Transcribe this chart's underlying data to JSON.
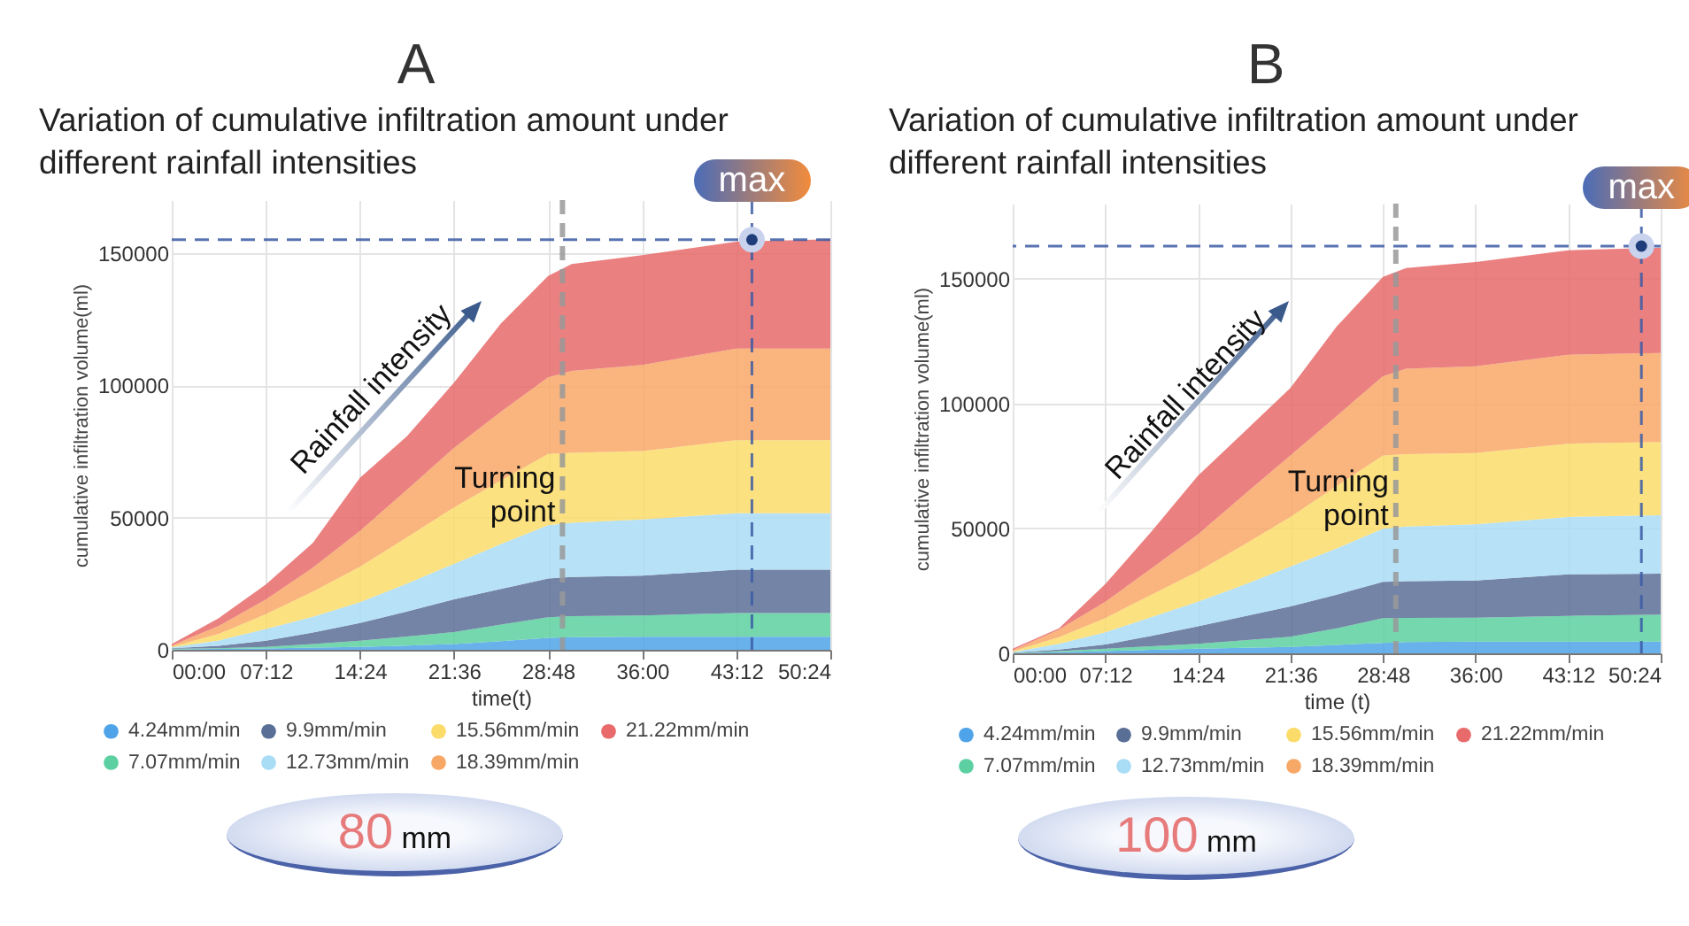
{
  "chart_data": [
    {
      "type": "area",
      "stacked": true,
      "title": "A",
      "subtitle": "Variation of cumulative infiltration amount under different rainfall intensities",
      "xlabel": "time(t)",
      "ylabel": "cumulative infiltration volume(ml)",
      "x": [
        0,
        3.6,
        7.2,
        10.8,
        14.4,
        18,
        21.6,
        25.2,
        28.8,
        30.6,
        36,
        43.2,
        50.4
      ],
      "xlim": [
        0,
        50.4
      ],
      "xticks": [
        {
          "value": 0,
          "label": "00:00"
        },
        {
          "value": 7.2,
          "label": "07:12"
        },
        {
          "value": 14.4,
          "label": "14:24"
        },
        {
          "value": 21.6,
          "label": "21:36"
        },
        {
          "value": 28.8,
          "label": "28:48"
        },
        {
          "value": 36,
          "label": "36:00"
        },
        {
          "value": 43.2,
          "label": "43:12"
        },
        {
          "value": 50.4,
          "label": "50:24"
        }
      ],
      "ylim": [
        0,
        170000
      ],
      "yticks": [
        0,
        50000,
        100000,
        150000
      ],
      "grid": true,
      "legend": "bottom",
      "series": [
        {
          "name": "4.24mm/min",
          "color": "#4fa3e8",
          "values": [
            200,
            300,
            500,
            800,
            1100,
            1600,
            2200,
            3300,
            4500,
            4800,
            4900,
            4900,
            4900
          ]
        },
        {
          "name": "7.07mm/min",
          "color": "#5cd0a0",
          "values": [
            200,
            300,
            600,
            1400,
            2300,
            3400,
            4500,
            6200,
            7800,
            7900,
            8100,
            9000,
            9000
          ]
        },
        {
          "name": "9.9mm/min",
          "color": "#5a6f96",
          "values": [
            200,
            900,
            2300,
            4300,
            6700,
            9500,
            12400,
            13500,
            14600,
            14800,
            15000,
            16400,
            16400
          ]
        },
        {
          "name": "12.73mm/min",
          "color": "#a9dcf5",
          "values": [
            300,
            2000,
            4500,
            6000,
            7900,
            10500,
            13400,
            17000,
            20200,
            20500,
            21300,
            21300,
            21300
          ]
        },
        {
          "name": "15.56mm/min",
          "color": "#fbdc6a",
          "values": [
            300,
            2500,
            5600,
            9500,
            13400,
            17500,
            21300,
            24000,
            26900,
            26500,
            25800,
            27600,
            27600
          ]
        },
        {
          "name": "18.39mm/min",
          "color": "#f8a866",
          "values": [
            400,
            3000,
            5500,
            9000,
            13500,
            18000,
            22500,
            26000,
            29000,
            30900,
            32600,
            34700,
            34700
          ]
        },
        {
          "name": "21.22mm/min",
          "color": "#e86a6a",
          "values": [
            600,
            3000,
            5700,
            9400,
            20100,
            20200,
            24700,
            33400,
            38300,
            40400,
            41500,
            40400,
            41300
          ]
        }
      ],
      "ref_lines": [
        {
          "axis": "x",
          "value": 29.9,
          "label": "Turning point",
          "color": "#999999",
          "line_style": "dashed"
        },
        {
          "axis": "y",
          "value": 155000,
          "color": "#3b5ba5",
          "line_style": "dashed"
        },
        {
          "axis": "x",
          "value": 44.4,
          "color": "#3b5ba5",
          "line_style": "dashed"
        }
      ],
      "annotations": [
        {
          "text": "max",
          "x": 44.4,
          "y": 155000
        },
        "Rainfall intensity",
        "80 mm"
      ]
    },
    {
      "type": "area",
      "stacked": true,
      "title": "B",
      "subtitle": "Variation of cumulative infiltration amount under different rainfall intensities",
      "xlabel": "time (t)",
      "ylabel": "cumulative infiltration volume(ml)",
      "x": [
        0,
        3.6,
        7.2,
        10.8,
        14.4,
        18,
        21.6,
        25.2,
        28.8,
        30.6,
        36,
        43.2,
        50.4
      ],
      "xlim": [
        0,
        50.4
      ],
      "xticks": [
        {
          "value": 0,
          "label": "00:00"
        },
        {
          "value": 7.2,
          "label": "07:12"
        },
        {
          "value": 14.4,
          "label": "14:24"
        },
        {
          "value": 21.6,
          "label": "21:36"
        },
        {
          "value": 28.8,
          "label": "28:48"
        },
        {
          "value": 36,
          "label": "36:00"
        },
        {
          "value": 43.2,
          "label": "43:12"
        },
        {
          "value": 50.4,
          "label": "50:24"
        }
      ],
      "ylim": [
        0,
        180000
      ],
      "yticks": [
        0,
        50000,
        100000,
        150000
      ],
      "grid": true,
      "legend": "bottom",
      "series": [
        {
          "name": "4.24mm/min",
          "color": "#4fa3e8",
          "values": [
            100,
            400,
            900,
            1400,
            1900,
            2200,
            2600,
            3400,
            4200,
            4500,
            4700,
            4700,
            4700
          ]
        },
        {
          "name": "7.07mm/min",
          "color": "#5cd0a0",
          "values": [
            100,
            500,
            1000,
            1400,
            1900,
            3000,
            4000,
            6600,
            9900,
            9700,
            9600,
            10300,
            10800
          ]
        },
        {
          "name": "9.9mm/min",
          "color": "#5a6f96",
          "values": [
            100,
            600,
            1600,
            4200,
            7000,
            9600,
            12200,
            13500,
            14500,
            14700,
            14800,
            16600,
            16400
          ]
        },
        {
          "name": "12.73mm/min",
          "color": "#a9dcf5",
          "values": [
            200,
            2300,
            4900,
            7500,
            9800,
            12700,
            15900,
            18500,
            21300,
            21900,
            22500,
            23000,
            23400
          ]
        },
        {
          "name": "15.56mm/min",
          "color": "#fbdc6a",
          "values": [
            300,
            2700,
            5700,
            9000,
            12200,
            16000,
            19900,
            25000,
            29300,
            28900,
            28600,
            29300,
            29300
          ]
        },
        {
          "name": "18.39mm/min",
          "color": "#f8a866",
          "values": [
            400,
            3000,
            6500,
            10500,
            14800,
            20000,
            24600,
            28000,
            31700,
            34200,
            34700,
            35600,
            35600
          ]
        },
        {
          "name": "21.22mm/min",
          "color": "#e86a6a",
          "values": [
            700,
            500,
            7100,
            14800,
            23400,
            25100,
            27000,
            35800,
            39800,
            40300,
            41700,
            41800,
            42200
          ]
        }
      ],
      "ref_lines": [
        {
          "axis": "x",
          "value": 29.8,
          "label": "Turning point",
          "color": "#999999",
          "line_style": "dashed"
        },
        {
          "axis": "y",
          "value": 163000,
          "color": "#3b5ba5",
          "line_style": "dashed"
        },
        {
          "axis": "x",
          "value": 48.9,
          "color": "#3b5ba5",
          "line_style": "dashed"
        }
      ],
      "annotations": [
        {
          "text": "max",
          "x": 48.9,
          "y": 163000
        },
        "Rainfall intensity",
        "100 mm"
      ]
    }
  ]
}
